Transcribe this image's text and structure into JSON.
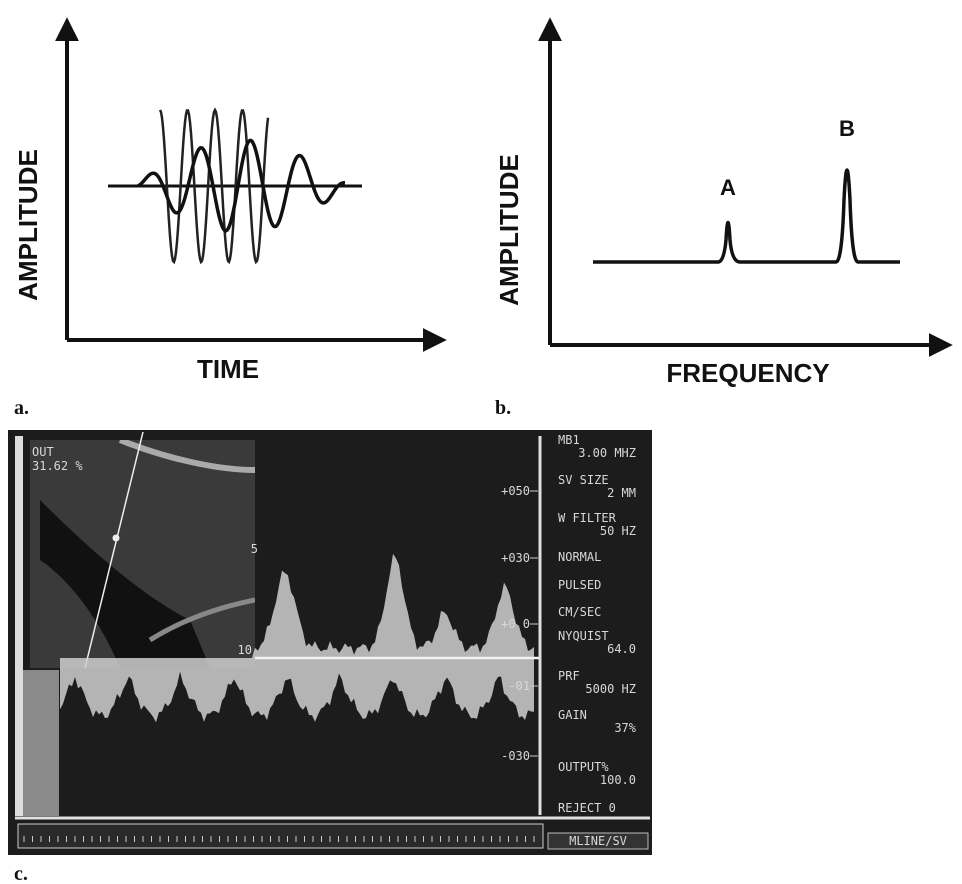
{
  "panel_a": {
    "label": "a.",
    "y_axis_label": "AMPLITUDE",
    "x_axis_label": "TIME"
  },
  "panel_b": {
    "label": "b.",
    "y_axis_label": "AMPLITUDE",
    "x_axis_label": "FREQUENCY",
    "peaks": [
      "A",
      "B"
    ]
  },
  "panel_c": {
    "label": "c.",
    "image_overlay": [
      "OUT",
      "31.62 %"
    ],
    "depth_scale": [
      "5",
      "10"
    ],
    "velocity_scale": [
      "+050",
      "+030",
      "+0 0",
      "-01",
      "-030"
    ],
    "settings": [
      [
        "MB1",
        "3.00 MHZ"
      ],
      [
        "SV SIZE",
        "2 MM"
      ],
      [
        "W FILTER",
        "50 HZ"
      ],
      [
        "NORMAL"
      ],
      [
        "PULSED"
      ],
      [
        "CM/SEC"
      ],
      [
        "NYQUIST",
        "64.0"
      ],
      [
        "PRF",
        "5000 HZ"
      ],
      [
        "GAIN",
        "37%"
      ],
      [
        "OUTPUT%",
        "100.0"
      ],
      [
        "REJECT 0"
      ]
    ],
    "mode": "MLINE/SV"
  }
}
